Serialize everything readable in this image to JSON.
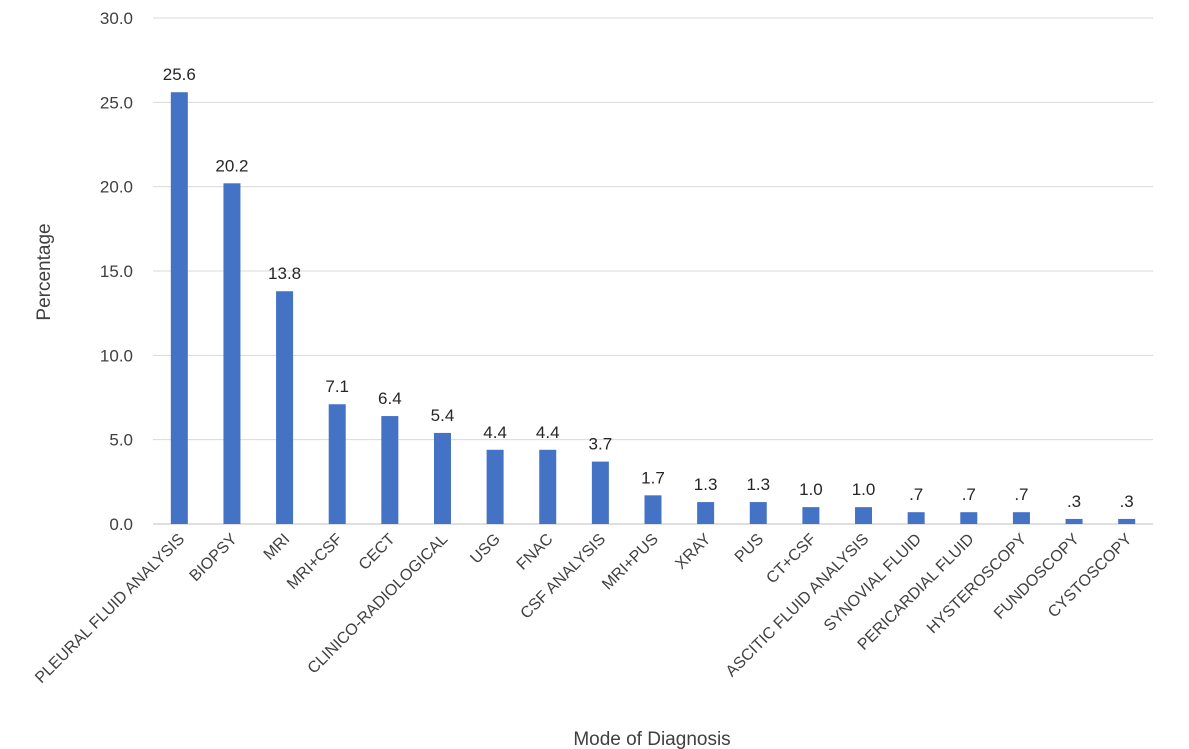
{
  "chart_data": {
    "type": "bar",
    "xlabel": "Mode of Diagnosis",
    "ylabel": "Percentage",
    "ylim": [
      0,
      30
    ],
    "yticks": [
      "0.0",
      "5.0",
      "10.0",
      "15.0",
      "20.0",
      "25.0",
      "30.0"
    ],
    "grid": true,
    "bar_color": "#4472c4",
    "categories": [
      "PLEURAL FLUID ANALYSIS",
      "BIOPSY",
      "MRI",
      "MRI+CSF",
      "CECT",
      "CLINICO-RADIOLOGICAL",
      "USG",
      "FNAC",
      "CSF ANALYSIS",
      "MRI+PUS",
      "XRAY",
      "PUS",
      "CT+CSF",
      "ASCITIC FLUID ANALYSIS",
      "SYNOVIAL FLUID",
      "PERICARDIAL FLUID",
      "HYSTEROSCOPY",
      "FUNDOSCOPY",
      "CYSTOSCOPY"
    ],
    "values": [
      25.6,
      20.2,
      13.8,
      7.1,
      6.4,
      5.4,
      4.4,
      4.4,
      3.7,
      1.7,
      1.3,
      1.3,
      1.0,
      1.0,
      0.7,
      0.7,
      0.7,
      0.3,
      0.3
    ],
    "data_labels": [
      "25.6",
      "20.2",
      "13.8",
      "7.1",
      "6.4",
      "5.4",
      "4.4",
      "4.4",
      "3.7",
      "1.7",
      "1.3",
      "1.3",
      "1.0",
      "1.0",
      ".7",
      ".7",
      ".7",
      ".3",
      ".3"
    ]
  }
}
